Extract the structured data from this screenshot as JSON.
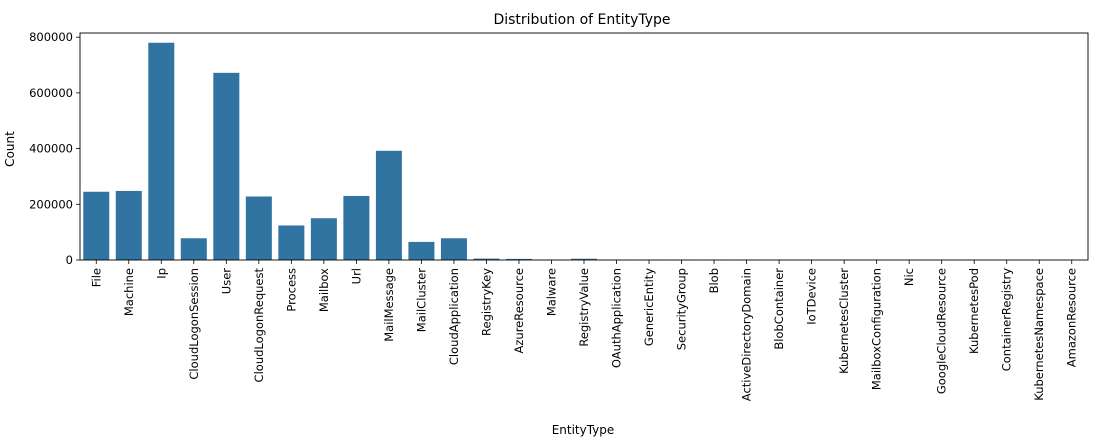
{
  "chart_data": {
    "type": "bar",
    "title": "Distribution of EntityType",
    "xlabel": "EntityType",
    "ylabel": "Count",
    "ylim": [
      0,
      815000
    ],
    "yticks": [
      0,
      200000,
      400000,
      600000,
      800000
    ],
    "ytick_labels": [
      "0",
      "200000",
      "400000",
      "600000",
      "800000"
    ],
    "grid": false,
    "bar_color": "#3274a1",
    "categories": [
      "File",
      "Machine",
      "Ip",
      "CloudLogonSession",
      "User",
      "CloudLogonRequest",
      "Process",
      "Mailbox",
      "Url",
      "MailMessage",
      "MailCluster",
      "CloudApplication",
      "RegistryKey",
      "AzureResource",
      "Malware",
      "RegistryValue",
      "OAuthApplication",
      "GenericEntity",
      "SecurityGroup",
      "Blob",
      "ActiveDirectoryDomain",
      "BlobContainer",
      "IoTDevice",
      "KubernetesCluster",
      "MailboxConfiguration",
      "Nic",
      "GoogleCloudResource",
      "KubernetesPod",
      "ContainerRegistry",
      "KubernetesNamespace",
      "AmazonResource"
    ],
    "values": [
      245000,
      248000,
      780000,
      78000,
      672000,
      228000,
      124000,
      150000,
      230000,
      392000,
      65000,
      78000,
      5000,
      4000,
      1500,
      4500,
      800,
      600,
      400,
      300,
      300,
      200,
      200,
      150,
      150,
      100,
      100,
      100,
      100,
      100,
      100
    ]
  }
}
